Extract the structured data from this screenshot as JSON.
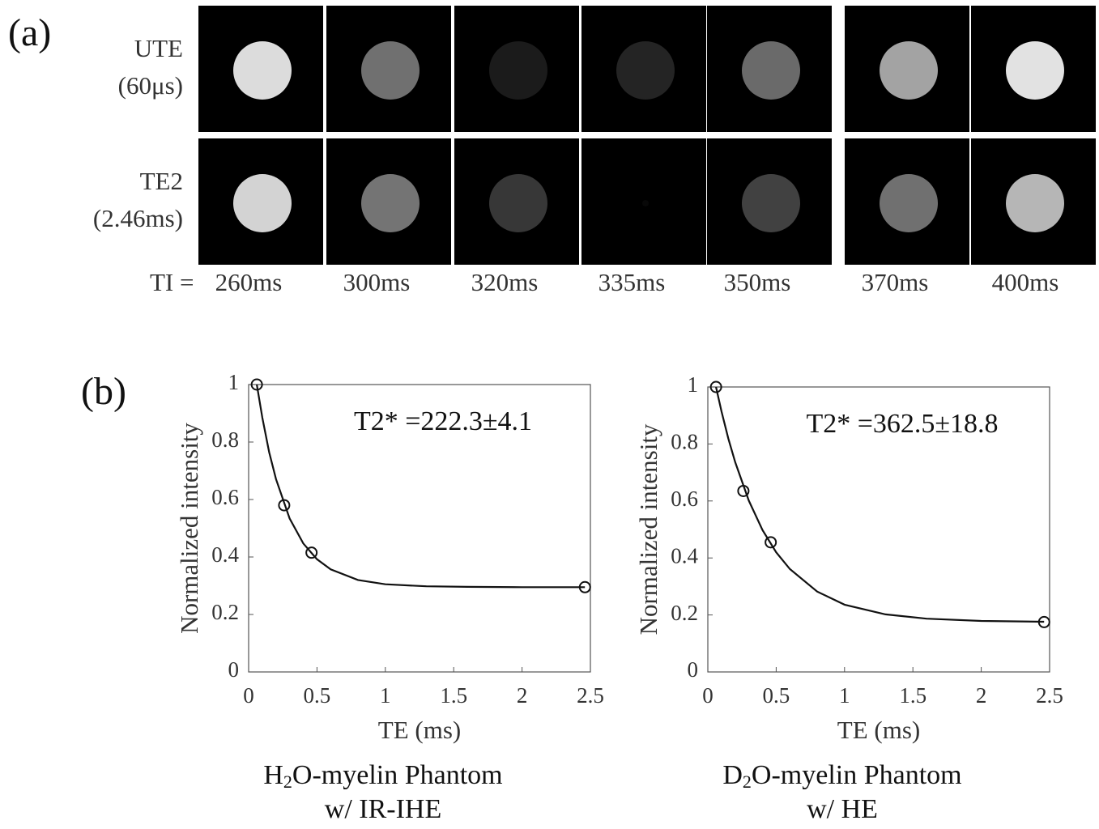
{
  "panel_a": {
    "label": "(a)",
    "rows": [
      {
        "label_lines": [
          "UTE",
          "(60μs)"
        ]
      },
      {
        "label_lines": [
          "TE2",
          "(2.46ms)"
        ]
      }
    ],
    "ti_label": "TI =",
    "columns": [
      "260ms",
      "300ms",
      "320ms",
      "335ms",
      "350ms",
      "370ms",
      "400ms"
    ]
  },
  "panel_b": {
    "label": "(b)"
  },
  "chart_data": [
    {
      "type": "scatter",
      "ylabel": "Normalized intensity",
      "xlabel": "TE (ms)",
      "annotation": "T2* =222.3±4.1",
      "caption": {
        "line1": [
          "H",
          "2",
          "O-myelin Phantom"
        ],
        "line2": "w/ IR-IHE"
      },
      "x": [
        0.06,
        0.26,
        0.46,
        2.46
      ],
      "values": [
        1,
        0.58,
        0.415,
        0.295
      ],
      "fit": {
        "x": [
          0.06,
          0.1,
          0.15,
          0.2,
          0.3,
          0.4,
          0.5,
          0.6,
          0.8,
          1.0,
          1.3,
          1.6,
          2.0,
          2.46
        ],
        "values": [
          1.0,
          0.885,
          0.765,
          0.671,
          0.534,
          0.447,
          0.392,
          0.357,
          0.32,
          0.305,
          0.298,
          0.296,
          0.295,
          0.295
        ]
      },
      "color": "#111111",
      "xlim": [
        0,
        2.5
      ],
      "xticks": [
        0,
        0.5,
        1,
        1.5,
        2,
        2.5
      ],
      "ylim": [
        0,
        1
      ],
      "yticks": [
        0,
        0.2,
        0.4,
        0.6,
        0.8,
        1
      ]
    },
    {
      "type": "scatter",
      "ylabel": "Normalized intensity",
      "xlabel": "TE (ms)",
      "annotation": "T2* =362.5±18.8",
      "caption": {
        "line1": [
          "D",
          "2",
          "O-myelin Phantom"
        ],
        "line2": "w/ HE"
      },
      "x": [
        0.06,
        0.26,
        0.46,
        2.46
      ],
      "values": [
        1,
        0.635,
        0.455,
        0.175
      ],
      "fit": {
        "x": [
          0.06,
          0.1,
          0.15,
          0.2,
          0.3,
          0.4,
          0.5,
          0.6,
          0.8,
          1.0,
          1.3,
          1.6,
          2.0,
          2.46
        ],
        "values": [
          1.0,
          0.914,
          0.819,
          0.736,
          0.601,
          0.498,
          0.42,
          0.361,
          0.282,
          0.236,
          0.202,
          0.187,
          0.179,
          0.176
        ]
      },
      "color": "#111111",
      "xlim": [
        0,
        2.5
      ],
      "xticks": [
        0,
        0.5,
        1,
        1.5,
        2,
        2.5
      ],
      "ylim": [
        0,
        1
      ],
      "yticks": [
        0,
        0.2,
        0.4,
        0.6,
        0.8,
        1
      ]
    }
  ]
}
